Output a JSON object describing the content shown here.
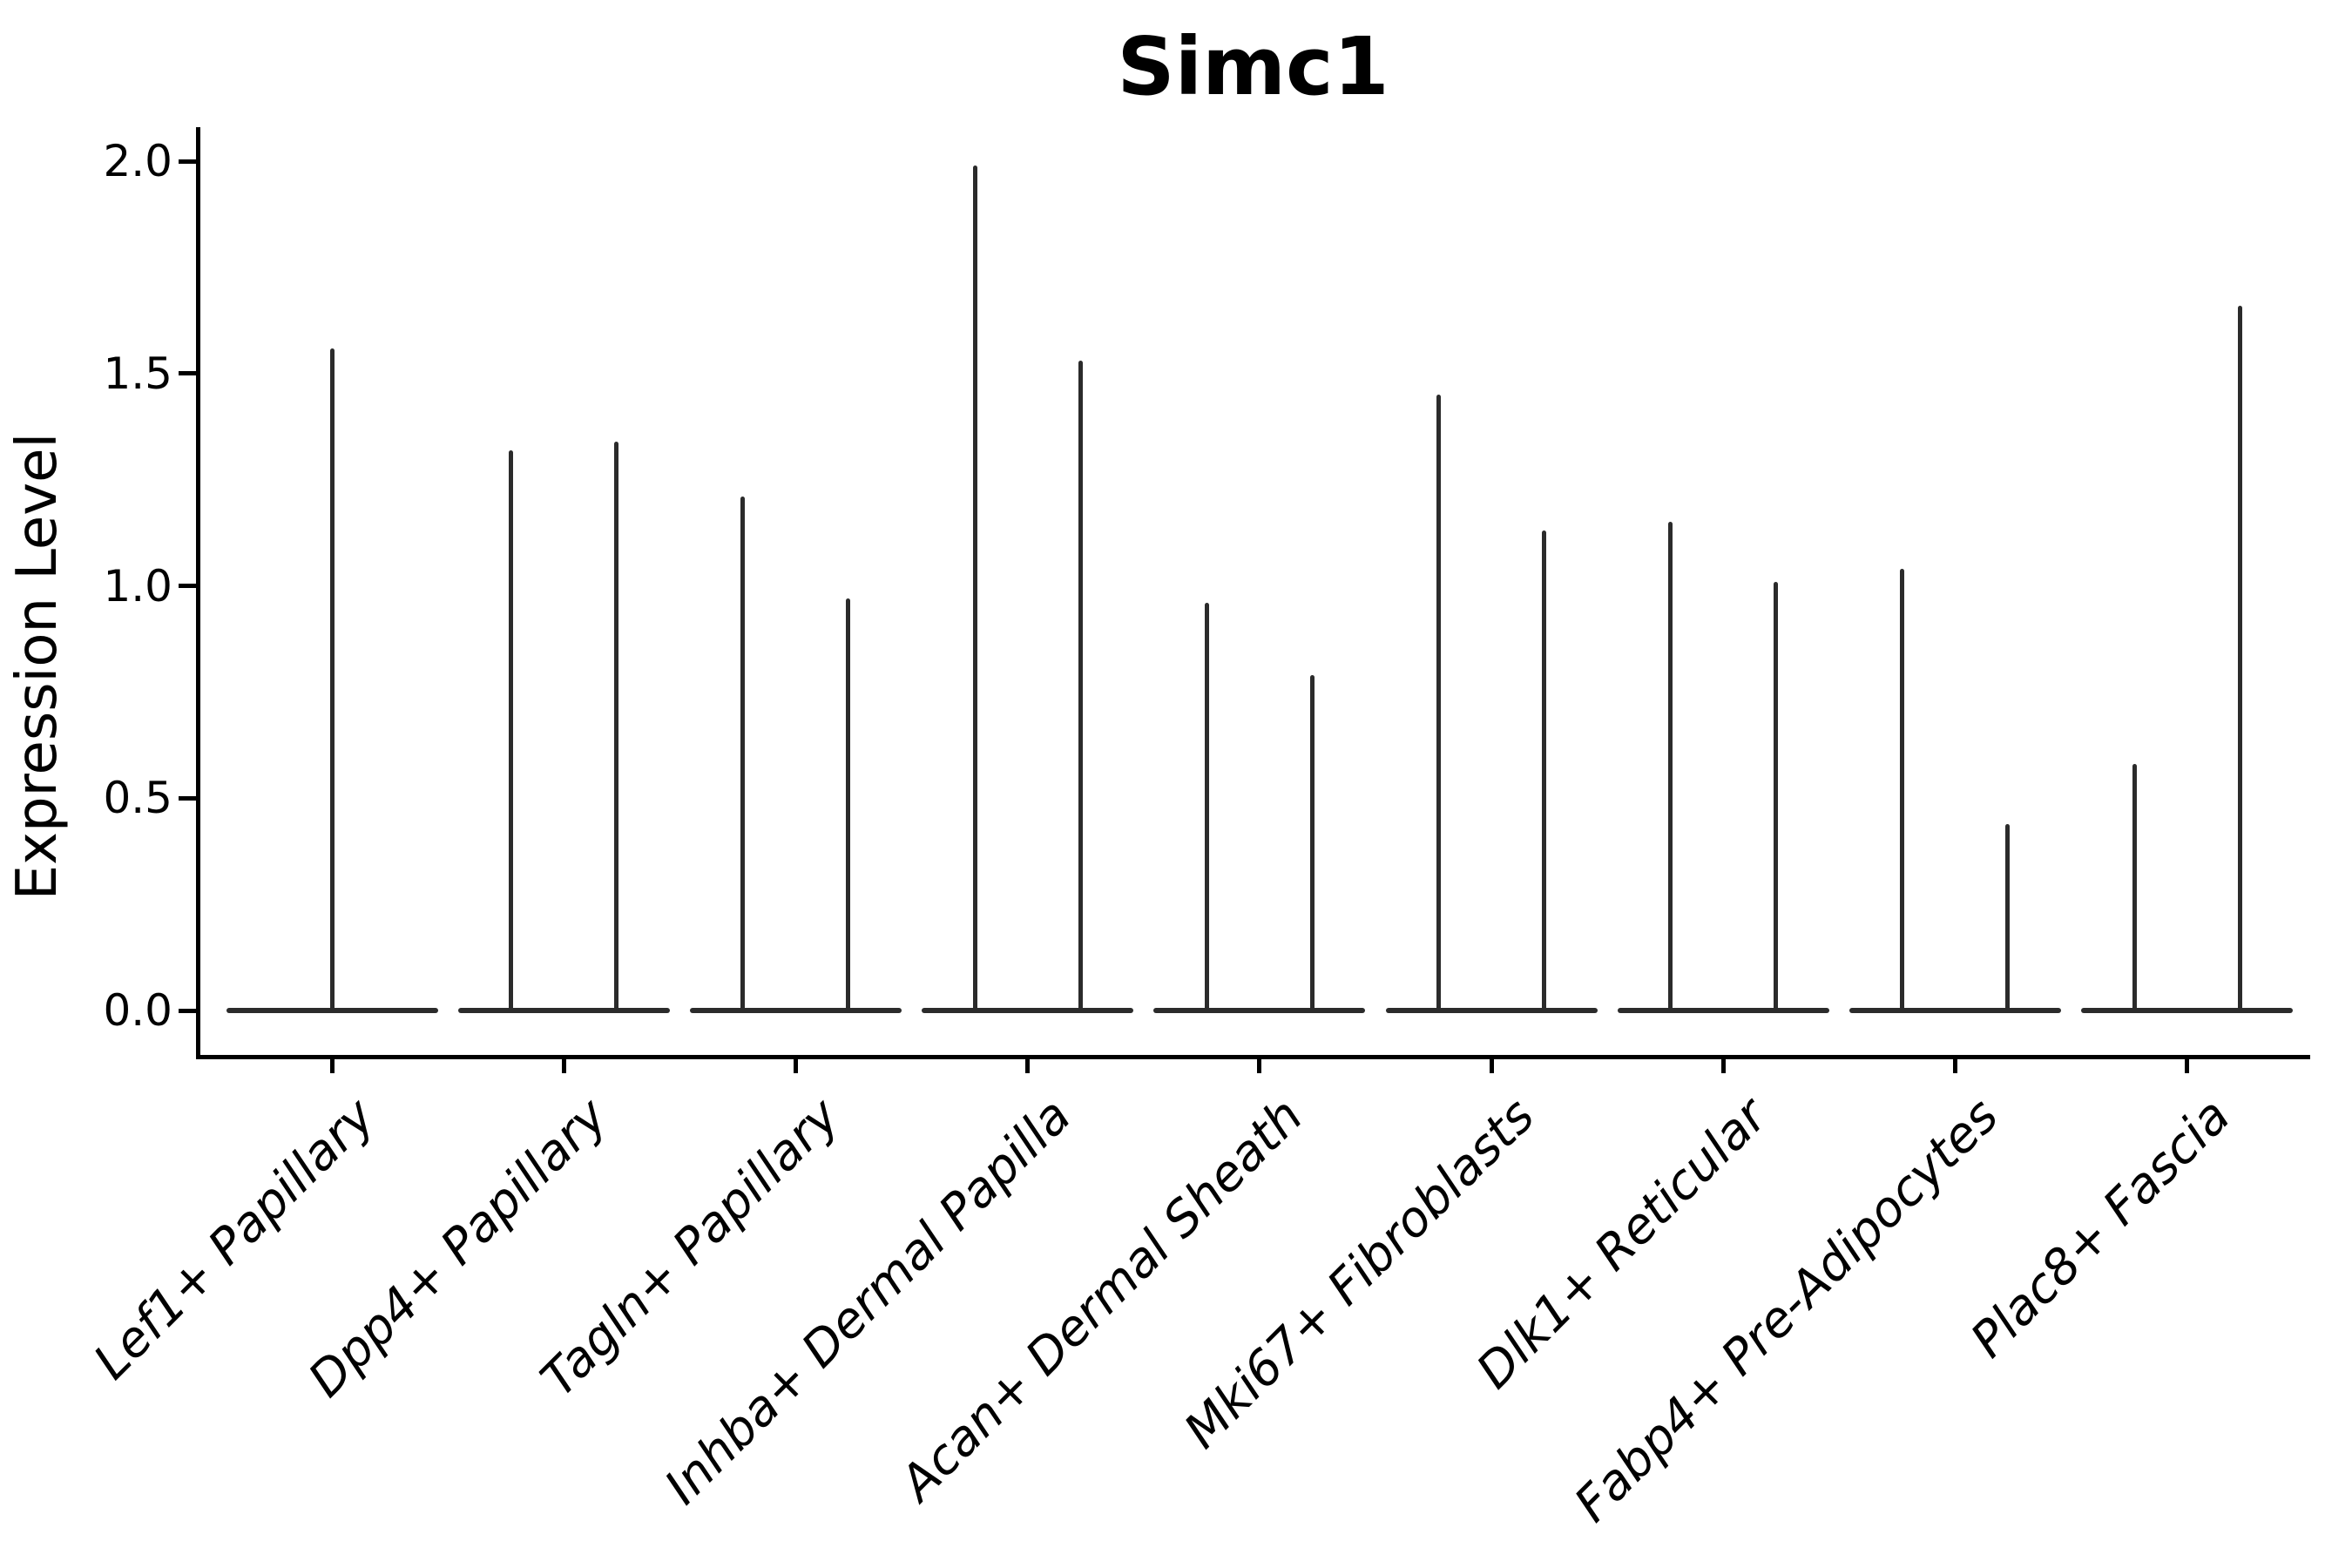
{
  "chart_data": {
    "type": "violin",
    "title": "Simc1",
    "xlabel": "",
    "ylabel": "Expression Level",
    "yticks": [
      {
        "value": 0.0,
        "label": "0.0"
      },
      {
        "value": 0.5,
        "label": "0.5"
      },
      {
        "value": 1.0,
        "label": "1.0"
      },
      {
        "value": 1.5,
        "label": "1.5"
      },
      {
        "value": 2.0,
        "label": "2.0"
      }
    ],
    "ylim": [
      -0.11,
      2.08
    ],
    "grid": false,
    "legend": null,
    "baseline_value": 0.0,
    "shape_note": "Each violin is a wide flat disc at expression 0 with a hairline central spike rising to its maximum expression value; categories with two violins show them side by side with merged bases",
    "categories": [
      "Lef1+ Papillary",
      "Dpp4+ Papillary",
      "Tagln+ Papillary",
      "Inhba+ Dermal Papilla",
      "Acan+ Dermal Sheath",
      "Mki67+ Fibroblasts",
      "Dlk1+ Reticular",
      "Fabp4+ Pre-Adipocytes",
      "Plac8+ Fascia"
    ],
    "groups": [
      {
        "category": "Lef1+ Papillary",
        "spike_maxima": [
          1.56
        ]
      },
      {
        "category": "Dpp4+ Papillary",
        "spike_maxima": [
          1.32,
          1.34
        ]
      },
      {
        "category": "Tagln+ Papillary",
        "spike_maxima": [
          1.21,
          0.97
        ]
      },
      {
        "category": "Inhba+ Dermal Papilla",
        "spike_maxima": [
          1.99,
          1.53
        ]
      },
      {
        "category": "Acan+ Dermal Sheath",
        "spike_maxima": [
          0.96,
          0.79
        ]
      },
      {
        "category": "Mki67+ Fibroblasts",
        "spike_maxima": [
          1.45,
          1.13
        ]
      },
      {
        "category": "Dlk1+ Reticular",
        "spike_maxima": [
          1.15,
          1.01
        ]
      },
      {
        "category": "Fabp4+ Pre-Adipocytes",
        "spike_maxima": [
          1.04,
          0.44
        ]
      },
      {
        "category": "Plac8+ Fascia",
        "spike_maxima": [
          0.58,
          1.66
        ]
      }
    ],
    "colors": {
      "violin": "#2b2b2b",
      "axis": "#000000",
      "text": "#000000",
      "background": "#ffffff"
    }
  }
}
